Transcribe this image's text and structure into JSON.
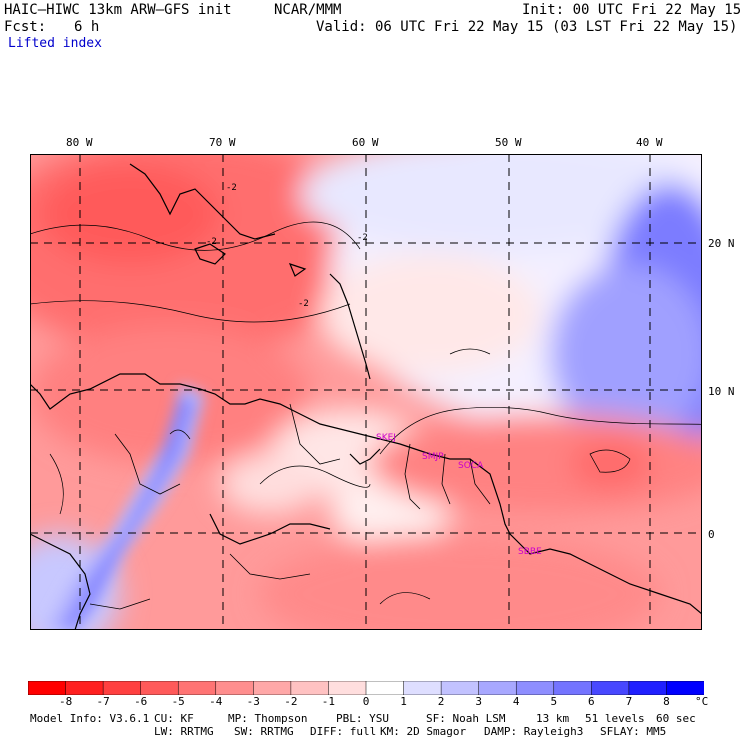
{
  "header": {
    "model": "HAIC–HIWC 13km ARW–GFS init",
    "org": "NCAR/MMM",
    "init": "Init: 00 UTC Fri 22 May 15",
    "fcst_label": "Fcst:",
    "fcst_value": "6 h",
    "valid": "Valid: 06 UTC Fri 22 May 15 (03 LST Fri 22 May 15)",
    "field": "Lifted index"
  },
  "map": {
    "longitude_labels": [
      "80 W",
      "70 W",
      "60 W",
      "50 W",
      "40 W"
    ],
    "latitude_labels": [
      "20 N",
      "10 N",
      "0"
    ],
    "contour_label": "-2",
    "stations": [
      "SKEJ",
      "SMJP",
      "SOCA",
      "SBBE"
    ]
  },
  "colorbar": {
    "levels": [
      "-8",
      "-7",
      "-6",
      "-5",
      "-4",
      "-3",
      "-2",
      "-1",
      "0",
      "1",
      "2",
      "3",
      "4",
      "5",
      "6",
      "7",
      "8"
    ],
    "unit": "°C",
    "colors": [
      "#ff0000",
      "#ff2020",
      "#ff4040",
      "#ff5a5a",
      "#ff7474",
      "#ff8e8e",
      "#ffa8a8",
      "#ffc2c2",
      "#ffdede",
      "#ffffff",
      "#dedeff",
      "#c2c2ff",
      "#a8a8ff",
      "#8e8eff",
      "#7474ff",
      "#4848ff",
      "#2020ff",
      "#0000ff"
    ]
  },
  "footer": {
    "line1": [
      "Model Info: V3.6.1",
      "CU: KF",
      "MP: Thompson",
      "PBL: YSU",
      "SF: Noah LSM",
      "13 km",
      "51 levels",
      "60 sec"
    ],
    "line2": [
      "LW: RRTMG",
      "SW: RRTMG",
      "DIFF: full",
      "KM: 2D Smagor",
      "DAMP: Rayleigh3",
      "SFLAY: MM5"
    ]
  }
}
